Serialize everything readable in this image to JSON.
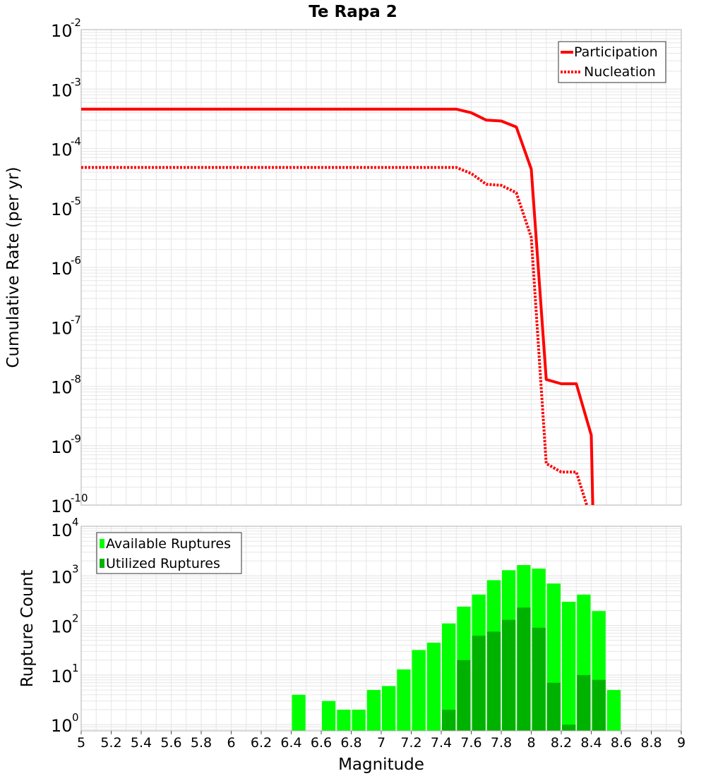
{
  "title": "Te Rapa 2",
  "colors": {
    "participation": "#ff0000",
    "nucleation": "#ff0000",
    "available": "#00ff00",
    "utilized": "#00b200",
    "grid": "#e6e6e6",
    "frame": "#b0b0b0"
  },
  "x_axis": {
    "label": "Magnitude",
    "min": 5,
    "max": 9,
    "ticks": [
      5,
      5.2,
      5.4,
      5.6,
      5.8,
      6,
      6.2,
      6.4,
      6.6,
      6.8,
      7,
      7.2,
      7.4,
      7.6,
      7.8,
      8,
      8.2,
      8.4,
      8.6,
      8.8,
      9
    ],
    "tick_labels": [
      "5",
      "5.2",
      "5.4",
      "5.6",
      "5.8",
      "6",
      "6.2",
      "6.4",
      "6.6",
      "6.8",
      "7",
      "7.2",
      "7.4",
      "7.6",
      "7.8",
      "8",
      "8.2",
      "8.4",
      "8.6",
      "8.8",
      "9"
    ]
  },
  "chart_data": [
    {
      "type": "line",
      "title": "Te Rapa 2",
      "ylabel": "Cumulative Rate (per yr)",
      "yscale": "log",
      "ylim": [
        1e-10,
        0.01
      ],
      "y_tick_exponents": [
        "-2",
        "-3",
        "-4",
        "-5",
        "-6",
        "-7",
        "-8",
        "-9",
        "-10"
      ],
      "y_tick_base": "10",
      "grid": true,
      "legend": "top-right",
      "series": [
        {
          "name": "Participation",
          "style": "solid",
          "x": [
            5.0,
            5.5,
            6.0,
            6.5,
            7.0,
            7.5,
            7.6,
            7.7,
            7.8,
            7.9,
            8.0,
            8.1,
            8.2,
            8.3,
            8.4,
            8.41
          ],
          "y": [
            0.00046,
            0.00046,
            0.00046,
            0.00046,
            0.00046,
            0.00046,
            0.0004,
            0.0003,
            0.00029,
            0.00023,
            4.5e-05,
            1.3e-08,
            1.1e-08,
            1.1e-08,
            1.5e-09,
            1e-10
          ]
        },
        {
          "name": "Nucleation",
          "style": "dotted",
          "x": [
            5.0,
            5.5,
            6.0,
            6.5,
            7.0,
            7.5,
            7.6,
            7.7,
            7.8,
            7.9,
            8.0,
            8.1,
            8.2,
            8.3,
            8.37
          ],
          "y": [
            4.8e-05,
            4.8e-05,
            4.8e-05,
            4.8e-05,
            4.8e-05,
            4.8e-05,
            3.8e-05,
            2.5e-05,
            2.4e-05,
            1.8e-05,
            3.2e-06,
            5e-10,
            3.6e-10,
            3.6e-10,
            1e-10
          ]
        }
      ]
    },
    {
      "type": "bar",
      "xlabel": "Magnitude",
      "ylabel": "Rupture Count",
      "yscale": "log",
      "ylim": [
        0.75,
        10000
      ],
      "y_tick_values": [
        1,
        10,
        100,
        1000,
        10000
      ],
      "y_tick_exponents": [
        "0",
        "1",
        "2",
        "3",
        "4"
      ],
      "y_tick_base": "10",
      "grid": true,
      "legend": "top-left",
      "bin_width": 0.1,
      "series": [
        {
          "name": "Available Ruptures",
          "x": [
            6.45,
            6.65,
            6.75,
            6.85,
            6.95,
            7.05,
            7.15,
            7.25,
            7.35,
            7.45,
            7.55,
            7.65,
            7.75,
            7.85,
            7.95,
            8.05,
            8.15,
            8.25,
            8.35,
            8.45,
            8.55
          ],
          "values": [
            4,
            3,
            2,
            2,
            5,
            6,
            13,
            32,
            45,
            110,
            240,
            420,
            820,
            1300,
            1650,
            1400,
            700,
            300,
            420,
            195,
            5
          ]
        },
        {
          "name": "Utilized Ruptures",
          "x": [
            7.45,
            7.55,
            7.65,
            7.75,
            7.85,
            7.95,
            8.05,
            8.15,
            8.25,
            8.35,
            8.45
          ],
          "values": [
            2,
            20,
            62,
            75,
            130,
            230,
            90,
            7,
            1,
            10,
            8
          ]
        }
      ]
    }
  ]
}
